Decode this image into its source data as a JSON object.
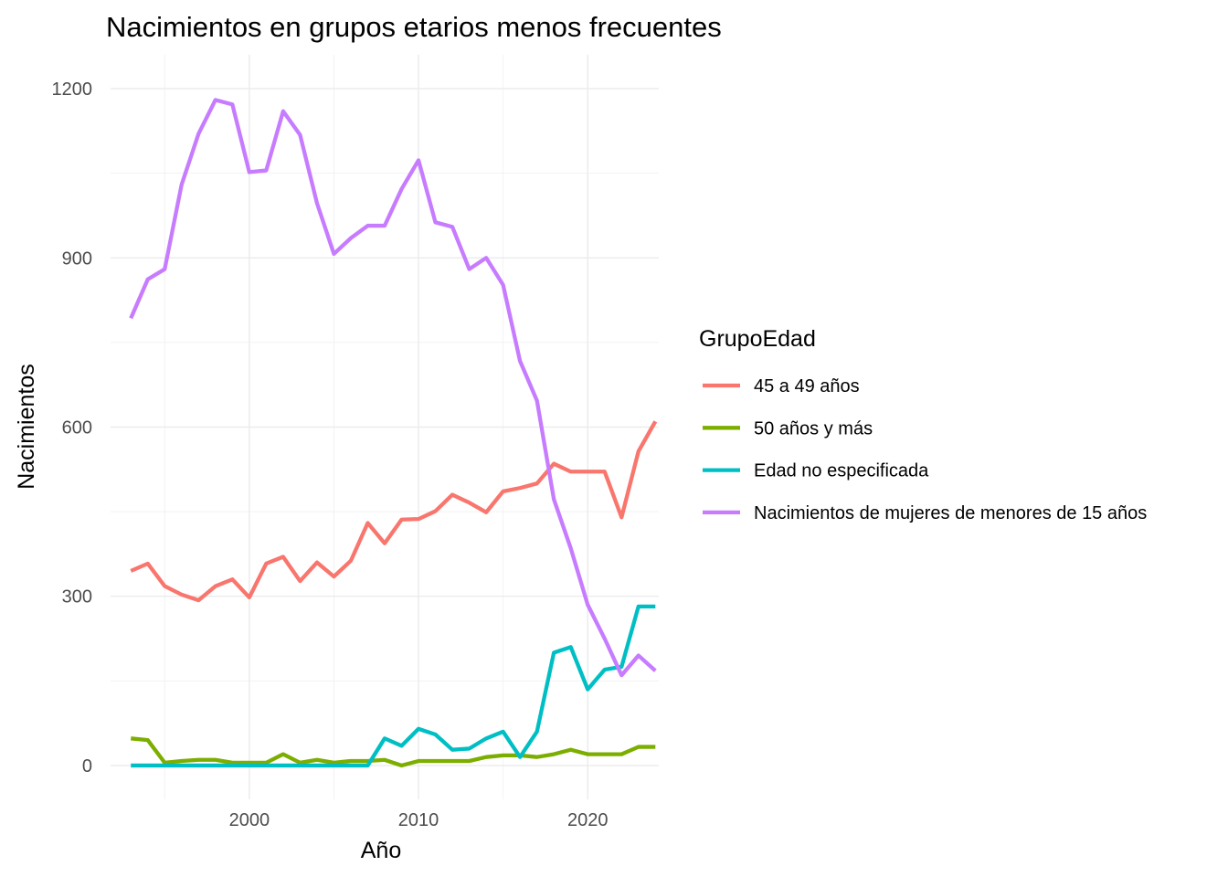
{
  "chart_data": {
    "type": "line",
    "title": "Nacimientos en grupos etarios menos frecuentes",
    "xlabel": "Año",
    "ylabel": "Nacimientos",
    "xlim": [
      1991.8,
      2024.2
    ],
    "ylim": [
      -60,
      1260
    ],
    "x_ticks": [
      2000,
      2010,
      2020
    ],
    "y_ticks": [
      0,
      300,
      600,
      900,
      1200
    ],
    "grid": true,
    "legend_title": "GrupoEdad",
    "legend_position": "right",
    "x": [
      1993,
      1994,
      1995,
      1996,
      1997,
      1998,
      1999,
      2000,
      2001,
      2002,
      2003,
      2004,
      2005,
      2006,
      2007,
      2008,
      2009,
      2010,
      2011,
      2012,
      2013,
      2014,
      2015,
      2016,
      2017,
      2018,
      2019,
      2020,
      2021,
      2022,
      2023,
      2024
    ],
    "series": [
      {
        "name": "45 a 49 años",
        "color": "#F8766D",
        "values": [
          345,
          358,
          318,
          303,
          293,
          318,
          330,
          298,
          358,
          370,
          327,
          360,
          335,
          363,
          430,
          394,
          436,
          437,
          451,
          480,
          466,
          449,
          486,
          492,
          500,
          535,
          521,
          521,
          521,
          440,
          557,
          610
        ]
      },
      {
        "name": "50 años y más",
        "color": "#7CAE00",
        "values": [
          48,
          45,
          5,
          8,
          10,
          10,
          5,
          5,
          5,
          20,
          5,
          10,
          5,
          8,
          8,
          10,
          0,
          8,
          8,
          8,
          8,
          15,
          18,
          18,
          15,
          20,
          28,
          20,
          20,
          20,
          33,
          33
        ]
      },
      {
        "name": "Edad no especificada",
        "color": "#00BFC4",
        "values": [
          0,
          0,
          0,
          0,
          0,
          0,
          0,
          0,
          0,
          0,
          0,
          0,
          0,
          0,
          0,
          48,
          35,
          65,
          55,
          28,
          30,
          48,
          60,
          15,
          60,
          200,
          210,
          135,
          170,
          175,
          282,
          282
        ]
      },
      {
        "name": "Nacimientos de mujeres de menores de 15 años",
        "color": "#C77CFF",
        "values": [
          793,
          862,
          880,
          1030,
          1120,
          1180,
          1172,
          1052,
          1055,
          1160,
          1118,
          997,
          907,
          935,
          957,
          957,
          1022,
          1073,
          963,
          955,
          880,
          900,
          852,
          717,
          647,
          472,
          385,
          285,
          225,
          160,
          195,
          168
        ]
      }
    ]
  }
}
